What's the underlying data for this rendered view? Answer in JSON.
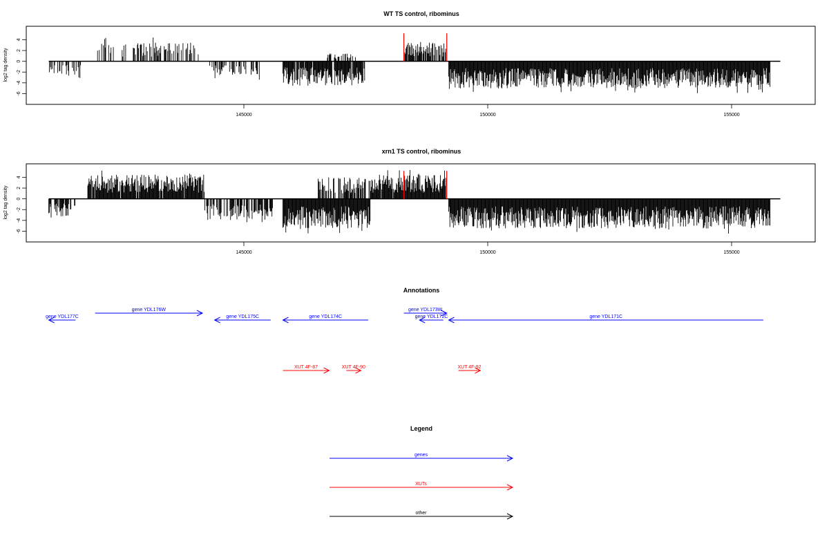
{
  "colors": {
    "gene": "#0000ff",
    "xut": "#ff0000",
    "other": "#000000",
    "data_line": "#000000",
    "highlight": "#ff0000"
  },
  "chart_data": [
    {
      "type": "bar",
      "title": "WT TS control, ribominus",
      "ylabel": "log2 tag density",
      "xlabel": "",
      "xlim": [
        140000,
        156600
      ],
      "ylim": [
        -8,
        6.5
      ],
      "xticks": [
        145000,
        150000,
        155000
      ],
      "yticks": [
        -6,
        -4,
        -2,
        0,
        2,
        4
      ],
      "grid": false,
      "highlight_x": [
        148280,
        149160
      ],
      "baseline_range": [
        141000,
        156000
      ],
      "segments": [
        {
          "from": 141000,
          "to": 141700,
          "base": 0,
          "amp": 2.5,
          "sign": -1,
          "density": 0.35
        },
        {
          "from": 142000,
          "to": 144100,
          "base": 0,
          "amp": 3.5,
          "sign": 1,
          "density": 0.4
        },
        {
          "from": 144300,
          "to": 145400,
          "base": 0,
          "amp": 2.5,
          "sign": -1,
          "density": 0.4
        },
        {
          "from": 145800,
          "to": 147500,
          "base": 0,
          "amp": 4.5,
          "sign": -1,
          "density": 0.9
        },
        {
          "from": 146700,
          "to": 147300,
          "base": 0,
          "amp": 1.5,
          "sign": 1,
          "density": 0.3
        },
        {
          "from": 148300,
          "to": 149150,
          "base": 0,
          "amp": 3.5,
          "sign": 1,
          "density": 0.7
        },
        {
          "from": 149200,
          "to": 155800,
          "base": 0,
          "amp": 5.0,
          "sign": -1,
          "density": 1.0
        }
      ]
    },
    {
      "type": "bar",
      "title": "xrn1 TS control, ribominus",
      "ylabel": "log2 tag density",
      "xlabel": "",
      "xlim": [
        140000,
        156600
      ],
      "ylim": [
        -8,
        6.5
      ],
      "xticks": [
        145000,
        150000,
        155000
      ],
      "yticks": [
        -6,
        -4,
        -2,
        0,
        2,
        4
      ],
      "grid": false,
      "highlight_x": [
        148280,
        149160
      ],
      "baseline_range": [
        141000,
        156000
      ],
      "segments": [
        {
          "from": 141000,
          "to": 141550,
          "base": 0,
          "amp": 3.5,
          "sign": -1,
          "density": 0.7
        },
        {
          "from": 141800,
          "to": 144200,
          "base": 0,
          "amp": 4.5,
          "sign": 1,
          "density": 0.95
        },
        {
          "from": 144200,
          "to": 145600,
          "base": 0,
          "amp": 4.0,
          "sign": -1,
          "density": 0.7
        },
        {
          "from": 145800,
          "to": 147600,
          "base": 0,
          "amp": 5.5,
          "sign": -1,
          "density": 1.0
        },
        {
          "from": 146500,
          "to": 147600,
          "base": 0,
          "amp": 4.0,
          "sign": 1,
          "density": 0.6
        },
        {
          "from": 147600,
          "to": 149150,
          "base": 0,
          "amp": 4.5,
          "sign": 1,
          "density": 0.95
        },
        {
          "from": 149200,
          "to": 155800,
          "base": 0,
          "amp": 5.5,
          "sign": -1,
          "density": 1.0
        }
      ]
    }
  ],
  "annotations": {
    "title": "Annotations",
    "genes": [
      {
        "label": "gene YDL177C",
        "start": 141000,
        "end": 141550,
        "strand": "-",
        "row": 1
      },
      {
        "label": "gene YDL176W",
        "start": 141950,
        "end": 144150,
        "strand": "+",
        "row": 0
      },
      {
        "label": "gene YDL175C",
        "start": 144400,
        "end": 145550,
        "strand": "-",
        "row": 1
      },
      {
        "label": "gene YDL174C",
        "start": 145800,
        "end": 147550,
        "strand": "-",
        "row": 1
      },
      {
        "label": "gene YDL173W",
        "start": 148280,
        "end": 149160,
        "strand": "+",
        "row": 0
      },
      {
        "label": "gene YDL172C",
        "start": 148600,
        "end": 149090,
        "strand": "-",
        "row": 1
      },
      {
        "label": "gene YDL171C",
        "start": 149200,
        "end": 155650,
        "strand": "-",
        "row": 1
      }
    ],
    "xuts": [
      {
        "label": "XUT 4F-87",
        "start": 145800,
        "end": 146750,
        "strand": "+"
      },
      {
        "label": "XUT 4F-90",
        "start": 147100,
        "end": 147400,
        "strand": "+"
      },
      {
        "label": "XUT 4F-92",
        "start": 149400,
        "end": 149850,
        "strand": "+"
      }
    ]
  },
  "legend": {
    "title": "Legend",
    "items": [
      {
        "label": "genes",
        "color": "#0000ff"
      },
      {
        "label": "XUTs",
        "color": "#ff0000"
      },
      {
        "label": "other",
        "color": "#000000"
      }
    ]
  }
}
